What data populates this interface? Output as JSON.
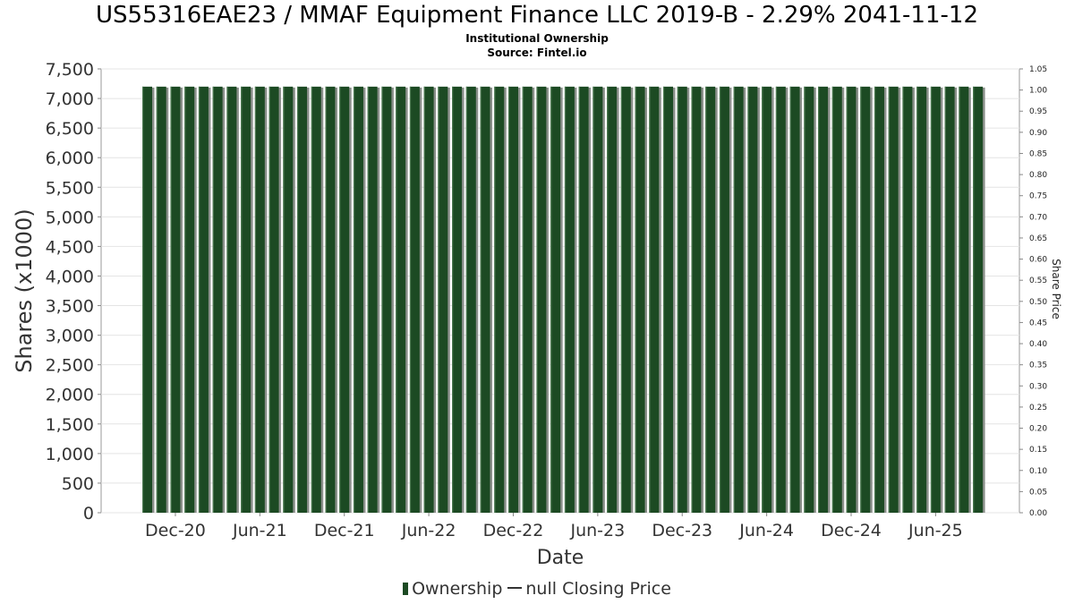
{
  "chart_data": {
    "type": "bar",
    "title": "US55316EAE23 / MMAF Equipment Finance LLC 2019-B - 2.29% 2041-11-12",
    "subtitle": "Institutional Ownership",
    "source": "Source: Fintel.io",
    "xlabel": "Date",
    "ylabel": "Shares (x1000)",
    "y2label": "Share Price",
    "ylim": [
      0,
      7500
    ],
    "y2lim": [
      0,
      1.05
    ],
    "yticks": [
      "0",
      "500",
      "1,000",
      "1,500",
      "2,000",
      "2,500",
      "3,000",
      "3,500",
      "4,000",
      "4,500",
      "5,000",
      "5,500",
      "6,000",
      "6,500",
      "7,000",
      "7,500"
    ],
    "y2ticks": [
      "0.00",
      "0.05",
      "0.10",
      "0.15",
      "0.20",
      "0.25",
      "0.30",
      "0.35",
      "0.40",
      "0.45",
      "0.50",
      "0.55",
      "0.60",
      "0.65",
      "0.70",
      "0.75",
      "0.80",
      "0.85",
      "0.90",
      "0.95",
      "1.00",
      "1.05"
    ],
    "xticks": [
      "Dec-20",
      "Jun-21",
      "Dec-21",
      "Jun-22",
      "Dec-22",
      "Jun-23",
      "Dec-23",
      "Jun-24",
      "Dec-24",
      "Jun-25"
    ],
    "grid": true,
    "legend_position": "bottom",
    "bar_color": "#1c4a23",
    "series": [
      {
        "name": "Ownership",
        "values": [
          7200,
          7200,
          7200,
          7200,
          7200,
          7200,
          7200,
          7200,
          7200,
          7200,
          7200,
          7200,
          7200,
          7200,
          7200,
          7200,
          7200,
          7200,
          7200,
          7200,
          7200,
          7200,
          7200,
          7200,
          7200,
          7200,
          7200,
          7200,
          7200,
          7200,
          7200,
          7200,
          7200,
          7200,
          7200,
          7200,
          7200,
          7200,
          7200,
          7200,
          7200,
          7200,
          7200,
          7200,
          7200,
          7200,
          7200,
          7200,
          7200,
          7200,
          7200,
          7200,
          7200,
          7200,
          7200,
          7200,
          7200,
          7200,
          7200,
          7200
        ]
      }
    ],
    "legend": [
      {
        "label": "Ownership",
        "kind": "bar"
      },
      {
        "label": "null Closing Price",
        "kind": "line"
      }
    ]
  }
}
